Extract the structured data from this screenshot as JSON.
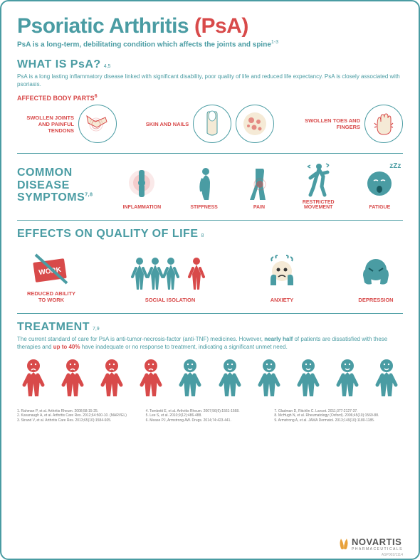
{
  "colors": {
    "teal": "#4a9ca3",
    "red": "#d84a4a",
    "dark": "#333",
    "gray": "#777",
    "cream": "#f5ead6"
  },
  "title": {
    "main": "Psoriatic Arthritis ",
    "accent": "(PsA)"
  },
  "subtitle": "PsA is a long-term, debilitating condition which affects the joints and spine",
  "subtitle_sup": "1-3",
  "what": {
    "heading": "WHAT IS PsA?",
    "sup": "4,5",
    "desc": "PsA is a long lasting inflammatory disease linked with significant disability, poor quality of life and reduced life expectancy. PsA is closely associated with psoriasis.",
    "subhead": "AFFECTED BODY PARTS",
    "subhead_sup": "6",
    "parts": [
      {
        "label": "SWOLLEN JOINTS AND PAINFUL TENDONS"
      },
      {
        "label": "SKIN AND NAILS"
      },
      {
        "label": "SWOLLEN TOES AND FINGERS"
      }
    ]
  },
  "symptoms": {
    "heading": "COMMON DISEASE SYMPTOMS",
    "sup": "7,8",
    "items": [
      "INFLAMMATION",
      "STIFFNESS",
      "PAIN",
      "RESTRICTED MOVEMENT",
      "FATIGUE"
    ],
    "zzz": "zZz"
  },
  "qol": {
    "heading": "EFFECTS ON QUALITY OF LIFE",
    "sup": "8",
    "items": [
      {
        "label": "REDUCED ABILITY TO WORK",
        "sign": "WORK"
      },
      {
        "label": "SOCIAL ISOLATION"
      },
      {
        "label": "ANXIETY"
      },
      {
        "label": "DEPRESSION"
      }
    ]
  },
  "treatment": {
    "heading": "TREATMENT",
    "sup": "7,9",
    "desc_a": "The current standard of care for PsA is anti-tumor-necrosis-factor (anti-TNF) medicines. However, ",
    "desc_b": "nearly half",
    "desc_c": " of patients are dissatisfied with these therapies and ",
    "desc_d": "up to 40%",
    "desc_e": " have inadequate or no response to treatment, indicating a significant unmet need.",
    "people_count": 10,
    "red_count": 4
  },
  "refs": {
    "c1": "1. Rahman P, et al. Arthritis Rheum. 2008;58:15-25.\n2. Kavanaugh A, et al. Arthritis Care Res. 2012;64:500-10. (MARVEL)\n3. Strand V, et al. Arthritis Care Res. 2013;65(10):1584-605.",
    "c2": "4. Tombetti E, et al. Arthritis Rheum. 2007;56(6):1561-1568.\n5. Lee S, et al. 2010;9(12):486-488.\n6. Mease PJ, Armstrong AW. Drugs. 2014;74:423-441.",
    "c3": "7. Gladman D, Ritchlin C. Lancet. 2011;377:2127-37.\n8. McHugh N, et al. Rheumatology (Oxford). 2006;45(10):1569-88.\n9. Armstrong A, et al. JAMA Dermatol. 2013;149(10):1180-1185."
  },
  "logo": {
    "brand": "NOVARTIS",
    "sub": "PHARMACEUTICALS"
  },
  "code": "ASP002/1114"
}
